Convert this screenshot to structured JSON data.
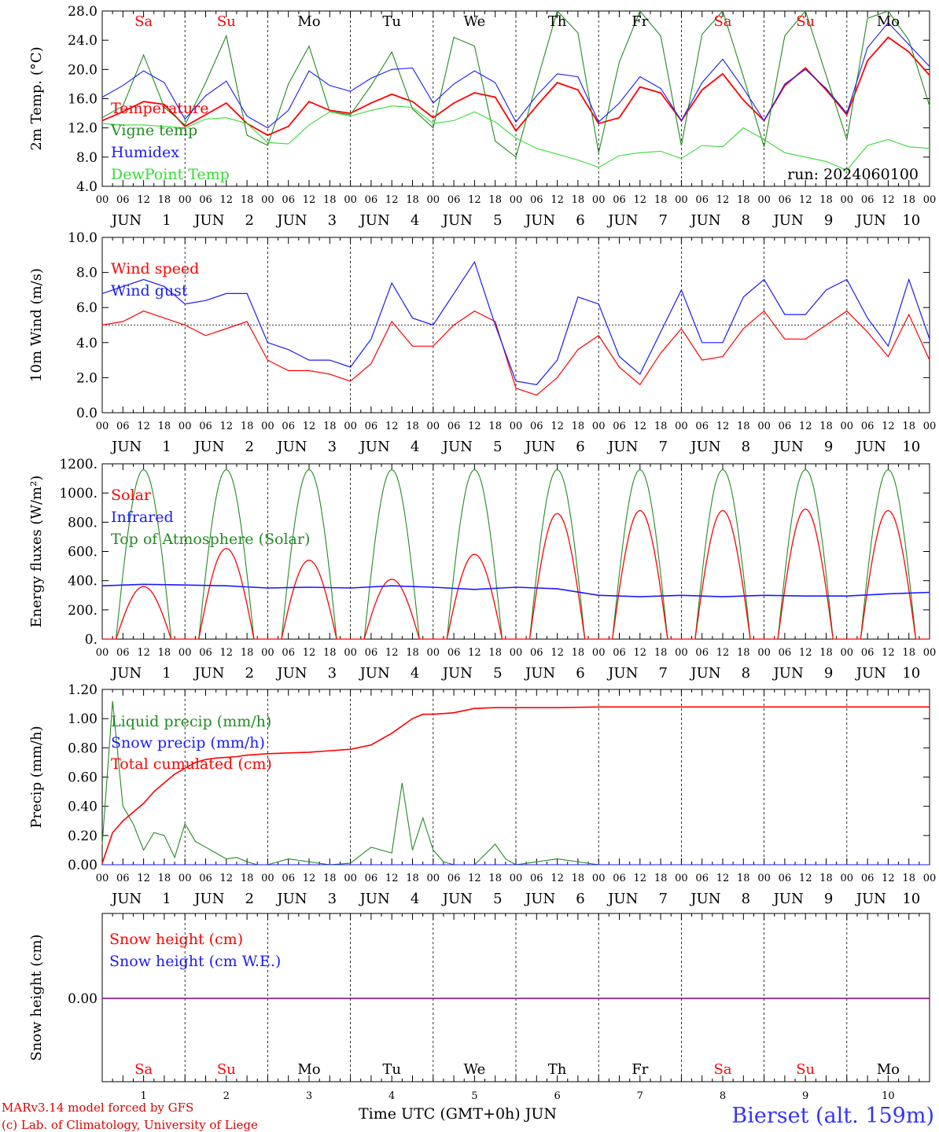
{
  "colors": {
    "red": "#ff0000",
    "green": "#228b22",
    "blue": "#1a1aff",
    "lightgreen": "#33dd33",
    "purple": "#800080",
    "station": "#3333ff"
  },
  "days": [
    "1",
    "2",
    "3",
    "4",
    "5",
    "6",
    "7",
    "8",
    "9",
    "10"
  ],
  "weekdays": [
    {
      "label": "Sa",
      "color": "#ff0000"
    },
    {
      "label": "Su",
      "color": "#ff0000"
    },
    {
      "label": "Mo",
      "color": "#000000"
    },
    {
      "label": "Tu",
      "color": "#000000"
    },
    {
      "label": "We",
      "color": "#000000"
    },
    {
      "label": "Th",
      "color": "#000000"
    },
    {
      "label": "Fr",
      "color": "#000000"
    },
    {
      "label": "Sa",
      "color": "#ff0000"
    },
    {
      "label": "Su",
      "color": "#ff0000"
    },
    {
      "label": "Mo",
      "color": "#000000"
    }
  ],
  "hour_ticks": [
    "00",
    "06",
    "12",
    "18"
  ],
  "month_label": "JUN",
  "run_label": "run: 2024060100",
  "footer": {
    "model": "MARv3.14 model forced by GFS",
    "lab": "(c) Lab. of Climatology, University of Liege",
    "xaxis": "Time UTC (GMT+0h) JUN",
    "station": "Bierset (alt. 159m)"
  },
  "chart_data": [
    {
      "type": "line",
      "ylabel": "2m Temp. (°C)",
      "ylim": [
        4,
        28
      ],
      "yticks": [
        "4.0",
        "8.0",
        "12.0",
        "16.0",
        "20.0",
        "24.0",
        "28.0"
      ],
      "x_unit": "hours since 2024-06-01 00 UTC",
      "x": [
        0,
        6,
        12,
        18,
        24,
        30,
        36,
        42,
        48,
        54,
        60,
        66,
        72,
        78,
        84,
        90,
        96,
        102,
        108,
        114,
        120,
        126,
        132,
        138,
        144,
        150,
        156,
        162,
        168,
        174,
        180,
        186,
        192,
        198,
        204,
        210,
        216,
        222,
        228,
        234,
        240
      ],
      "series": [
        {
          "name": "Temperature",
          "color": "#ff0000",
          "values": [
            13,
            14.2,
            15.6,
            15.2,
            12.2,
            13.8,
            15.4,
            12.6,
            11,
            12.2,
            15.6,
            14.4,
            14,
            15.4,
            16.6,
            15.6,
            13.4,
            15.4,
            16.8,
            16.2,
            11.6,
            15,
            18.2,
            17.2,
            12.6,
            13.4,
            17.6,
            16.8,
            13,
            17.2,
            19.4,
            15.8,
            13,
            17.8,
            20.2,
            17.2,
            13.8,
            21.2,
            24.4,
            22.4,
            19.2
          ]
        },
        {
          "name": "Vigne temp",
          "color": "#228b22",
          "values": [
            13.4,
            15,
            22,
            14.8,
            12.4,
            18.2,
            24.6,
            11,
            9.6,
            18,
            23.2,
            14.2,
            13.8,
            17.8,
            22.4,
            14.6,
            12,
            24.4,
            23.2,
            10.2,
            8,
            18.2,
            28.5,
            25,
            8.6,
            21,
            28.5,
            24.6,
            9.6,
            24.8,
            28.5,
            19,
            9.4,
            24.6,
            28.5,
            19.2,
            10.4,
            27,
            28.5,
            24,
            15
          ]
        },
        {
          "name": "Humidex",
          "color": "#1a1aff",
          "values": [
            16.2,
            17.8,
            19.8,
            18.2,
            13.2,
            16.4,
            18.4,
            13.6,
            12,
            14.4,
            19.8,
            17.8,
            17,
            18.8,
            20,
            20.2,
            15.4,
            18,
            19.8,
            18.2,
            12.8,
            16.4,
            19.4,
            19,
            12.8,
            15.4,
            19,
            17.4,
            13,
            18.2,
            21.4,
            17.4,
            13,
            18,
            20,
            17.4,
            14,
            23,
            26.4,
            23.4,
            20.4
          ]
        },
        {
          "name": "DewPoint Temp",
          "color": "#33dd33",
          "values": [
            12.6,
            12.4,
            12.4,
            12.2,
            12,
            13.2,
            13.4,
            12.6,
            10,
            9.8,
            12.4,
            14.2,
            13.6,
            14.4,
            15,
            14.8,
            12.6,
            13,
            14.2,
            12.8,
            10.6,
            9.2,
            8.4,
            7.6,
            6.6,
            8.2,
            8.6,
            8.8,
            7.8,
            9.6,
            9.4,
            12,
            10.4,
            8.6,
            8,
            7.4,
            6.2,
            9.6,
            10.4,
            9.4,
            9.2
          ]
        }
      ],
      "legend": [
        "Temperature",
        "Vigne temp",
        "Humidex",
        "DewPoint Temp"
      ]
    },
    {
      "type": "line",
      "ylabel": "10m Wind (m/s)",
      "ylim": [
        0,
        10
      ],
      "yticks": [
        "0.0",
        "2.0",
        "4.0",
        "6.0",
        "8.0",
        "10.0"
      ],
      "x": [
        0,
        6,
        12,
        18,
        24,
        30,
        36,
        42,
        48,
        54,
        60,
        66,
        72,
        78,
        84,
        90,
        96,
        102,
        108,
        114,
        120,
        126,
        132,
        138,
        144,
        150,
        156,
        162,
        168,
        174,
        180,
        186,
        192,
        198,
        204,
        210,
        216,
        222,
        228,
        234,
        240
      ],
      "series": [
        {
          "name": "Wind speed",
          "color": "#ff0000",
          "values": [
            5,
            5.2,
            5.8,
            5.4,
            5,
            4.4,
            4.8,
            5.2,
            3,
            2.4,
            2.4,
            2.2,
            1.8,
            2.8,
            5.2,
            3.8,
            3.8,
            5,
            5.8,
            5.2,
            1.4,
            1,
            2,
            3.6,
            4.4,
            2.6,
            1.6,
            3.4,
            4.8,
            3,
            3.2,
            4.8,
            5.8,
            4.2,
            4.2,
            5,
            5.8,
            4.6,
            3.2,
            5.6,
            3
          ]
        },
        {
          "name": "Wind gust",
          "color": "#1a1aff",
          "values": [
            6.8,
            7.2,
            7.6,
            7.2,
            6.2,
            6.4,
            6.8,
            6.8,
            4,
            3.6,
            3,
            3,
            2.6,
            4.2,
            7.4,
            5.4,
            5,
            6.8,
            8.6,
            5,
            1.8,
            1.6,
            3,
            6.6,
            6.2,
            3.2,
            2.2,
            4.6,
            7,
            4,
            4,
            6.6,
            7.6,
            5.6,
            5.6,
            7,
            7.6,
            5.4,
            3.8,
            7.6,
            4.2
          ]
        }
      ],
      "reference_line": 5,
      "legend": [
        "Wind speed",
        "Wind gust"
      ]
    },
    {
      "type": "line",
      "ylabel": "Energy fluxes (W/m²)",
      "ylim": [
        0,
        1200
      ],
      "yticks": [
        "0.",
        "200.",
        "400.",
        "600.",
        "800.",
        "1000.",
        "1200."
      ],
      "series": [
        {
          "name": "Solar",
          "color": "#ff0000",
          "daily_peak": [
            360,
            620,
            540,
            410,
            580,
            860,
            880,
            880,
            890,
            880
          ]
        },
        {
          "name": "Infrared",
          "color": "#1a1aff",
          "values": [
            365,
            375,
            370,
            365,
            350,
            355,
            350,
            365,
            355,
            340,
            355,
            345,
            300,
            290,
            300,
            290,
            300,
            295,
            295,
            310,
            320
          ]
        },
        {
          "name": "Top of Atmosphere (Solar)",
          "color": "#228b22",
          "daily_peak": [
            1160,
            1160,
            1160,
            1160,
            1160,
            1160,
            1160,
            1160,
            1160,
            1160
          ]
        }
      ],
      "legend": [
        "Solar",
        "Infrared",
        "Top of Atmosphere (Solar)"
      ]
    },
    {
      "type": "line",
      "ylabel": "Precip (mm/h)",
      "ylim": [
        0,
        1.2
      ],
      "yticks": [
        "0.00",
        "0.20",
        "0.40",
        "0.60",
        "0.80",
        "1.00",
        "1.20"
      ],
      "x": [
        0,
        3,
        6,
        9,
        12,
        15,
        18,
        21,
        24,
        27,
        30,
        33,
        36,
        39,
        42,
        45,
        48,
        54,
        60,
        66,
        72,
        78,
        84,
        87,
        90,
        93,
        96,
        99,
        102,
        108,
        114,
        117,
        120,
        132,
        144,
        168,
        192,
        216,
        240
      ],
      "series": [
        {
          "name": "Liquid precip (mm/h)",
          "color": "#228b22",
          "values": [
            0.14,
            1.12,
            0.4,
            0.28,
            0.1,
            0.22,
            0.2,
            0.05,
            0.28,
            0.16,
            0.12,
            0.08,
            0.04,
            0.05,
            0.02,
            0,
            0,
            0.04,
            0.02,
            0,
            0.01,
            0.12,
            0.08,
            0.56,
            0.1,
            0.32,
            0.1,
            0.02,
            0,
            0,
            0.14,
            0.04,
            0,
            0.04,
            0,
            0,
            0,
            0,
            0
          ]
        },
        {
          "name": "Snow precip (mm/h)",
          "color": "#1a1aff",
          "values": [
            0,
            0,
            0,
            0,
            0,
            0,
            0,
            0,
            0,
            0,
            0,
            0,
            0,
            0,
            0,
            0,
            0,
            0,
            0,
            0,
            0,
            0,
            0,
            0,
            0,
            0,
            0,
            0,
            0,
            0,
            0,
            0,
            0,
            0,
            0,
            0,
            0,
            0,
            0
          ]
        },
        {
          "name": "Total cumulated (cm)",
          "color": "#ff0000",
          "values": [
            0.01,
            0.22,
            0.3,
            0.36,
            0.42,
            0.5,
            0.56,
            0.62,
            0.66,
            0.7,
            0.72,
            0.73,
            0.735,
            0.74,
            0.75,
            0.755,
            0.76,
            0.765,
            0.77,
            0.78,
            0.79,
            0.82,
            0.9,
            0.95,
            1.0,
            1.03,
            1.03,
            1.035,
            1.04,
            1.07,
            1.075,
            1.075,
            1.075,
            1.075,
            1.08,
            1.08,
            1.08,
            1.08,
            1.08
          ]
        }
      ],
      "legend": [
        "Liquid precip (mm/h)",
        "Snow precip (mm/h)",
        "Total cumulated (cm)"
      ]
    },
    {
      "type": "line",
      "ylabel": "Snow height (cm)",
      "yticks": [
        "0.00"
      ],
      "series": [
        {
          "name": "Snow height (cm)",
          "color": "#ff0000",
          "values": [
            0,
            0
          ]
        },
        {
          "name": "Snow height (cm W.E.)",
          "color": "#1a1aff",
          "values": [
            0,
            0
          ]
        }
      ],
      "legend": [
        "Snow height (cm)",
        "Snow height (cm W.E.)"
      ]
    }
  ]
}
